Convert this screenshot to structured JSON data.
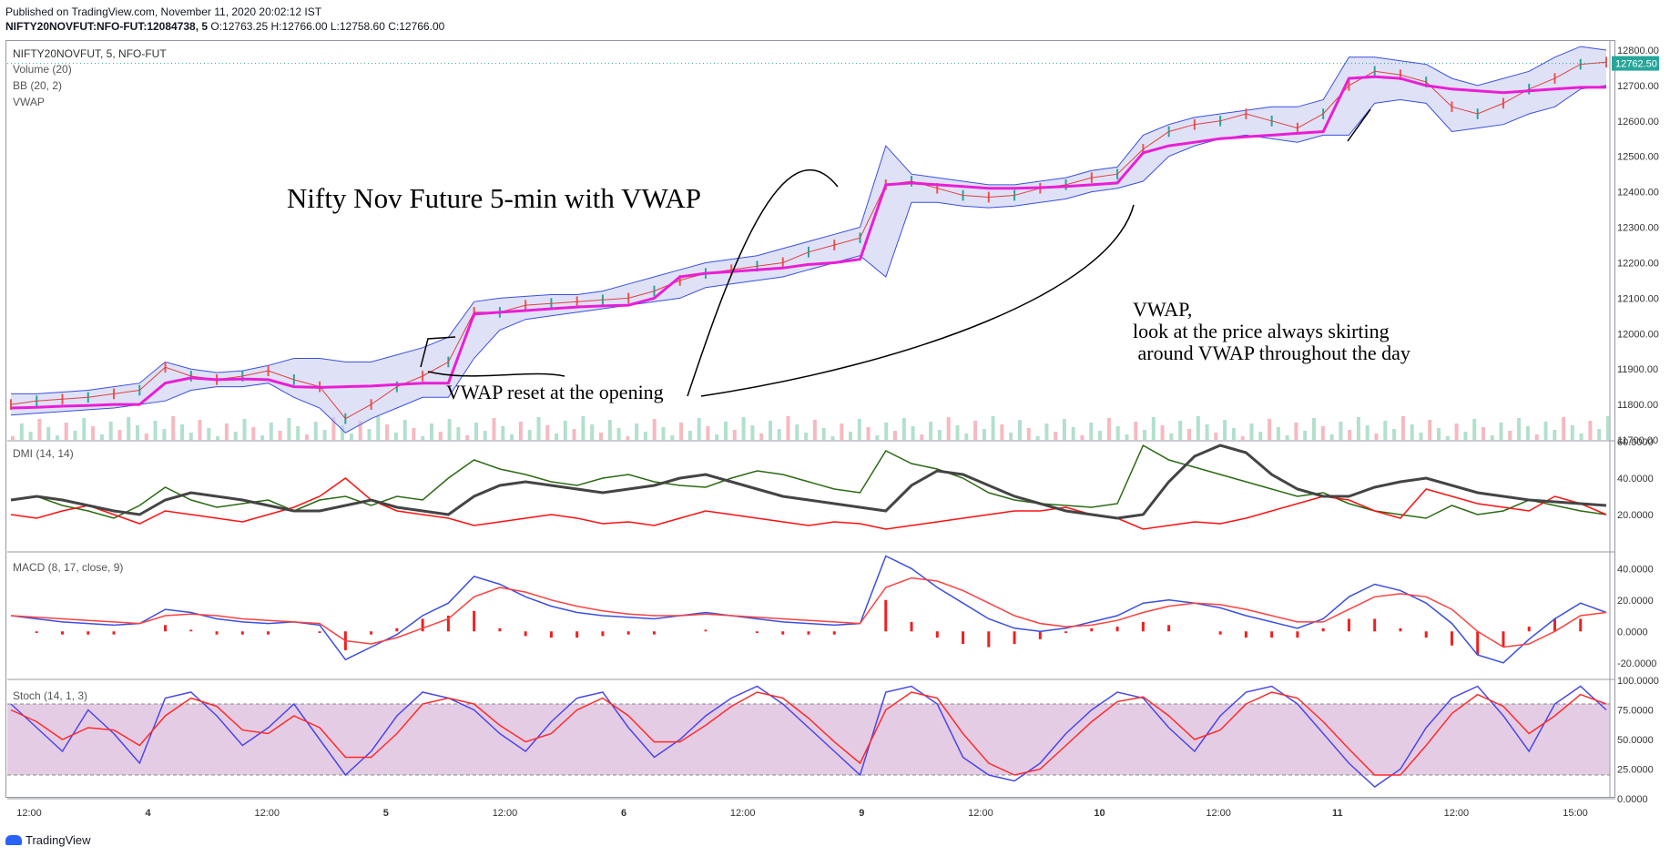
{
  "header": {
    "published": "Published on TradingView.com, November 11, 2020 20:02:12 IST",
    "symbol_line": "NIFTY20NOVFUT:NFO-FUT:12084738, 5",
    "ohlc": "O:12763.25 H:12766.00 L:12758.60 C:12766.00"
  },
  "main_pane": {
    "symbol": "NIFTY20NOVFUT, 5, NFO-FUT",
    "indicators": [
      "Volume (20)",
      "BB (20, 2)",
      "VWAP"
    ],
    "last_price_badge": "12762.50",
    "annotations": {
      "title": "Nifty Nov Future 5-min with VWAP",
      "reset_note": "VWAP reset at the opening",
      "vwap_note_line1": "VWAP,",
      "vwap_note_line2": "look at the price always skirting",
      "vwap_note_line3": " around VWAP throughout the day"
    }
  },
  "dmi_pane": {
    "label": "DMI (14, 14)"
  },
  "macd_pane": {
    "label": "MACD (8, 17, close, 9)"
  },
  "stoch_pane": {
    "label": "Stoch (14, 1, 3)"
  },
  "footer": {
    "brand": "TradingView"
  },
  "colors": {
    "vwap": "#e91ed6",
    "bb_band": "#3a4fe0",
    "bb_fill": "#c9cdf0",
    "macd_line": "#3a4fe0",
    "signal_line": "#ff4040",
    "hist": "#ef2020",
    "plus_di": "#2b6a12",
    "minus_di": "#ff1010",
    "adx": "#444444",
    "stoch_k": "#4a47e8",
    "stoch_d": "#ff2a2a",
    "stoch_band": "#cc99cc",
    "badge": "#26a69a"
  },
  "chart_data": [
    {
      "type": "line",
      "name": "price",
      "ylim": [
        11700,
        12800
      ],
      "y_ticks": [
        12800,
        12700,
        12600,
        12500,
        12400,
        12300,
        12200,
        12100,
        12000,
        11900,
        11800,
        11700
      ],
      "y_tick_labels": [
        "12800.00",
        "12700.00",
        "12600.00",
        "12500.00",
        "12400.00",
        "12300.00",
        "12200.00",
        "12100.00",
        "12000.00",
        "11900.00",
        "11800.00",
        "11700.00"
      ],
      "x_tick_labels": [
        "12:00",
        "4",
        "12:00",
        "5",
        "12:00",
        "6",
        "12:00",
        "9",
        "12:00",
        "10",
        "12:00",
        "11",
        "12:00",
        "15:00"
      ],
      "price": [
        11800,
        11810,
        11815,
        11820,
        11830,
        11840,
        11905,
        11880,
        11870,
        11880,
        11895,
        11870,
        11850,
        11760,
        11800,
        11850,
        11880,
        11920,
        12060,
        12060,
        12080,
        12085,
        12090,
        12095,
        12100,
        12120,
        12150,
        12170,
        12180,
        12190,
        12200,
        12230,
        12250,
        12270,
        12420,
        12430,
        12410,
        12390,
        12385,
        12390,
        12410,
        12420,
        12440,
        12450,
        12520,
        12570,
        12590,
        12600,
        12620,
        12600,
        12580,
        12620,
        12700,
        12740,
        12730,
        12710,
        12640,
        12620,
        12650,
        12690,
        12720,
        12760,
        12766
      ],
      "vwap": [
        11790,
        11792,
        11795,
        11797,
        11800,
        11800,
        11860,
        11875,
        11870,
        11872,
        11870,
        11850,
        11848,
        11850,
        11852,
        11856,
        11860,
        11860,
        12055,
        12060,
        12065,
        12070,
        12075,
        12078,
        12080,
        12100,
        12160,
        12170,
        12175,
        12180,
        12185,
        12195,
        12200,
        12210,
        12420,
        12425,
        12420,
        12415,
        12410,
        12410,
        12412,
        12415,
        12420,
        12425,
        12510,
        12530,
        12540,
        12550,
        12555,
        12560,
        12565,
        12570,
        12720,
        12725,
        12720,
        12700,
        12690,
        12685,
        12680,
        12685,
        12690,
        12695,
        12695
      ],
      "bb_upper": [
        11830,
        11830,
        11835,
        11840,
        11850,
        11860,
        11920,
        11900,
        11890,
        11895,
        11910,
        11930,
        11930,
        11920,
        11920,
        11940,
        11960,
        11990,
        12090,
        12100,
        12105,
        12110,
        12110,
        12120,
        12140,
        12160,
        12180,
        12200,
        12210,
        12220,
        12240,
        12260,
        12280,
        12300,
        12530,
        12450,
        12440,
        12430,
        12420,
        12420,
        12430,
        12440,
        12460,
        12470,
        12560,
        12590,
        12610,
        12620,
        12630,
        12640,
        12640,
        12660,
        12780,
        12780,
        12770,
        12760,
        12720,
        12700,
        12720,
        12740,
        12780,
        12810,
        12800
      ],
      "bb_lower": [
        11770,
        11775,
        11780,
        11785,
        11790,
        11800,
        11810,
        11840,
        11850,
        11850,
        11860,
        11820,
        11790,
        11720,
        11760,
        11790,
        11820,
        11820,
        11930,
        12010,
        12040,
        12050,
        12060,
        12070,
        12080,
        12090,
        12100,
        12130,
        12140,
        12150,
        12160,
        12180,
        12200,
        12220,
        12160,
        12370,
        12370,
        12360,
        12355,
        12360,
        12370,
        12380,
        12400,
        12410,
        12430,
        12500,
        12530,
        12550,
        12560,
        12550,
        12540,
        12560,
        12560,
        12650,
        12660,
        12650,
        12570,
        12580,
        12590,
        12620,
        12640,
        12690,
        12700
      ]
    },
    {
      "type": "line",
      "name": "dmi",
      "ylim": [
        0,
        60
      ],
      "y_tick_labels": [
        "60.0000",
        "40.0000",
        "20.0000"
      ],
      "plus_di": [
        28,
        30,
        25,
        22,
        18,
        25,
        35,
        28,
        24,
        26,
        28,
        22,
        28,
        30,
        25,
        30,
        28,
        40,
        50,
        45,
        42,
        38,
        36,
        40,
        42,
        38,
        36,
        35,
        40,
        44,
        42,
        38,
        34,
        32,
        55,
        48,
        45,
        40,
        32,
        28,
        26,
        25,
        24,
        26,
        58,
        50,
        46,
        42,
        38,
        34,
        30,
        32,
        26,
        22,
        20,
        18,
        25,
        20,
        22,
        28,
        25,
        22,
        20
      ],
      "minus_di": [
        20,
        18,
        22,
        25,
        20,
        15,
        22,
        20,
        18,
        16,
        20,
        24,
        30,
        40,
        28,
        22,
        20,
        18,
        14,
        16,
        18,
        20,
        18,
        15,
        16,
        14,
        18,
        22,
        20,
        18,
        16,
        14,
        16,
        15,
        12,
        14,
        16,
        18,
        20,
        22,
        22,
        24,
        20,
        18,
        12,
        14,
        16,
        15,
        18,
        22,
        26,
        30,
        28,
        22,
        18,
        34,
        30,
        26,
        24,
        22,
        30,
        26,
        20
      ],
      "adx": [
        28,
        30,
        28,
        25,
        22,
        20,
        28,
        32,
        30,
        28,
        25,
        22,
        22,
        25,
        28,
        24,
        22,
        20,
        30,
        36,
        38,
        36,
        34,
        32,
        34,
        36,
        40,
        42,
        38,
        34,
        30,
        28,
        26,
        24,
        22,
        36,
        44,
        42,
        36,
        30,
        26,
        22,
        20,
        18,
        20,
        38,
        52,
        58,
        54,
        42,
        34,
        30,
        30,
        35,
        38,
        40,
        36,
        32,
        30,
        28,
        27,
        26,
        25
      ]
    },
    {
      "type": "line",
      "name": "macd",
      "ylim": [
        -30,
        50
      ],
      "y_tick_labels": [
        "40.0000",
        "20.0000",
        "0.0000",
        "-20.0000"
      ],
      "macd": [
        10,
        8,
        6,
        5,
        4,
        5,
        14,
        12,
        8,
        6,
        5,
        6,
        4,
        -18,
        -10,
        -2,
        10,
        18,
        35,
        30,
        22,
        16,
        12,
        10,
        9,
        8,
        10,
        12,
        10,
        8,
        6,
        5,
        4,
        5,
        48,
        40,
        28,
        18,
        8,
        2,
        0,
        2,
        6,
        10,
        18,
        20,
        18,
        15,
        10,
        6,
        2,
        8,
        22,
        30,
        26,
        18,
        5,
        -15,
        -20,
        -5,
        8,
        18,
        12
      ],
      "signal": [
        10,
        9,
        8,
        7,
        6,
        5,
        10,
        11,
        10,
        8,
        7,
        6,
        5,
        -6,
        -8,
        -4,
        2,
        8,
        22,
        28,
        25,
        20,
        16,
        13,
        11,
        10,
        10,
        11,
        10,
        9,
        8,
        7,
        6,
        5,
        28,
        34,
        32,
        26,
        18,
        10,
        5,
        3,
        4,
        7,
        12,
        16,
        18,
        17,
        14,
        10,
        6,
        6,
        14,
        22,
        24,
        22,
        14,
        0,
        -10,
        -8,
        0,
        10,
        12
      ]
    },
    {
      "type": "line",
      "name": "stoch",
      "ylim": [
        0,
        100
      ],
      "y_tick_labels": [
        "100.0000",
        "75.0000",
        "50.0000",
        "25.0000",
        "0.0000"
      ],
      "band": [
        20,
        80
      ],
      "k": [
        80,
        60,
        40,
        75,
        55,
        30,
        85,
        90,
        70,
        45,
        60,
        80,
        50,
        20,
        40,
        70,
        90,
        85,
        75,
        55,
        40,
        65,
        85,
        90,
        60,
        35,
        50,
        70,
        85,
        95,
        80,
        60,
        40,
        20,
        90,
        95,
        80,
        35,
        20,
        15,
        30,
        55,
        75,
        90,
        85,
        60,
        40,
        70,
        90,
        95,
        80,
        55,
        30,
        10,
        25,
        60,
        85,
        95,
        70,
        40,
        80,
        95,
        75
      ],
      "d": [
        75,
        65,
        50,
        60,
        58,
        45,
        70,
        85,
        78,
        58,
        55,
        70,
        60,
        35,
        35,
        55,
        80,
        85,
        80,
        62,
        48,
        55,
        75,
        85,
        70,
        48,
        48,
        62,
        78,
        90,
        85,
        68,
        48,
        30,
        75,
        90,
        85,
        55,
        30,
        20,
        25,
        45,
        65,
        82,
        86,
        70,
        50,
        58,
        80,
        90,
        85,
        65,
        42,
        20,
        20,
        45,
        72,
        88,
        78,
        55,
        70,
        88,
        80
      ]
    }
  ]
}
